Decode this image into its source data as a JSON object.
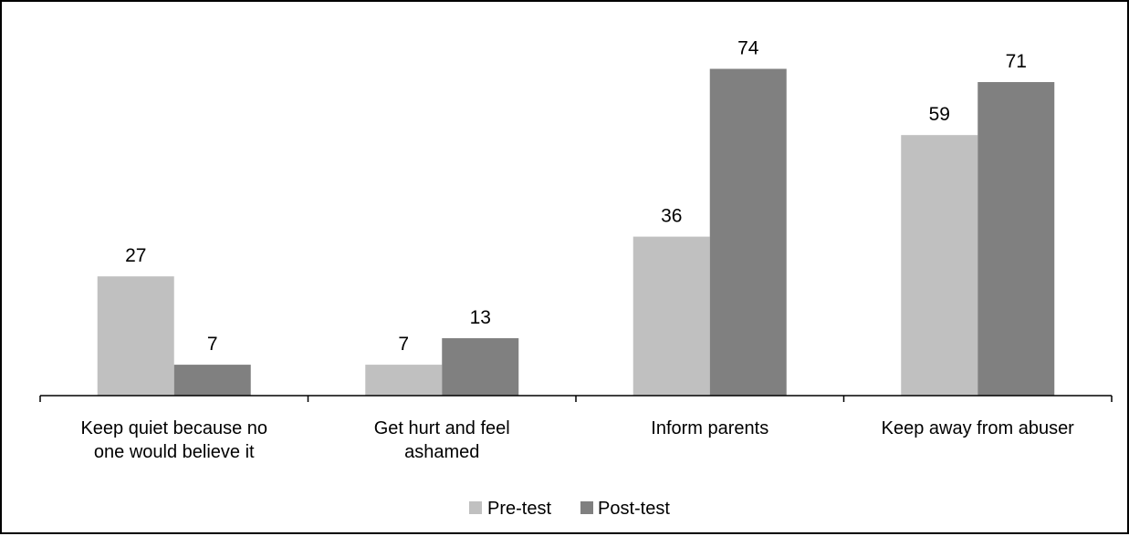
{
  "chart_data": {
    "type": "bar",
    "categories": [
      [
        "Keep quiet because no",
        "one would believe it"
      ],
      [
        "Get hurt and feel",
        "ashamed"
      ],
      [
        "Inform parents"
      ],
      [
        "Keep away from abuser"
      ]
    ],
    "series": [
      {
        "name": "Pre-test",
        "values": [
          27,
          7,
          36,
          59
        ],
        "color": "#c0c0c0"
      },
      {
        "name": "Post-test",
        "values": [
          7,
          13,
          74,
          71
        ],
        "color": "#808080"
      }
    ],
    "ylim": [
      0,
      80
    ],
    "grid": false,
    "legend_position": "bottom"
  }
}
